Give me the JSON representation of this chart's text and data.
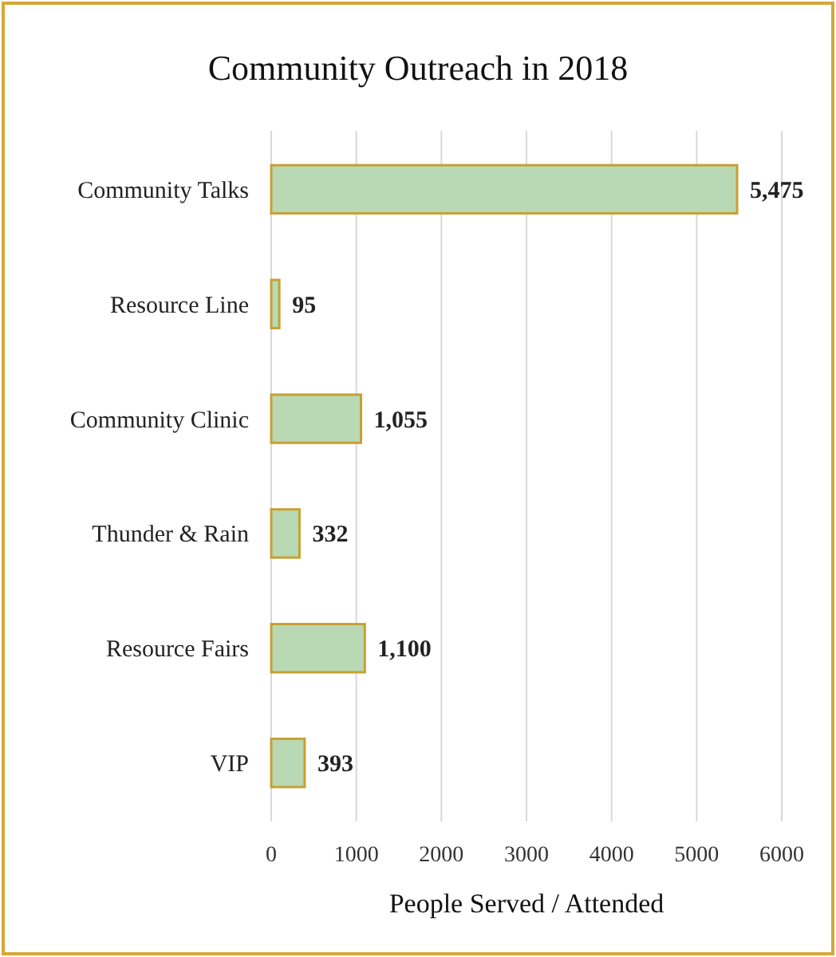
{
  "chart_data": {
    "type": "bar",
    "orientation": "horizontal",
    "title": "Community Outreach in 2018",
    "xlabel": "People Served / Attended",
    "categories": [
      "Community Talks",
      "Resource Line",
      "Community Clinic",
      "Thunder & Rain",
      "Resource Fairs",
      "VIP"
    ],
    "values": [
      5475,
      95,
      1055,
      332,
      1100,
      393
    ],
    "color": "#b9d9b5",
    "xlim": [
      0,
      6000
    ],
    "xticks": [
      0,
      1000,
      2000,
      3000,
      4000,
      5000,
      6000
    ],
    "value_labels": [
      "5,475",
      "95",
      "1,055",
      "332",
      "1,100",
      "393"
    ],
    "grid": "x"
  }
}
